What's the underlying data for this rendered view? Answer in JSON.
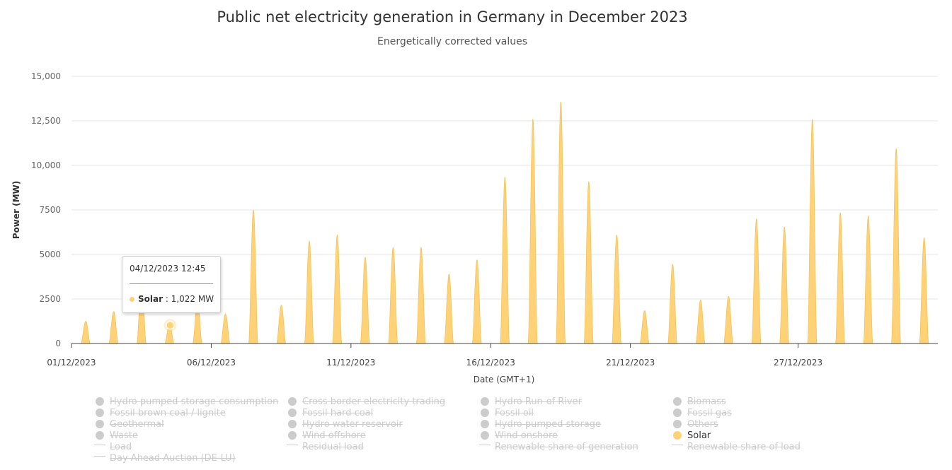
{
  "title": "Public net electricity generation in Germany in December 2023",
  "subtitle": "Energetically corrected values",
  "colors": {
    "solar": "#ffd278",
    "solar_stroke": "#f2c35c",
    "legend_inactive": "#cccccc",
    "axis": "#444444",
    "grid": "#e6e6e6"
  },
  "chart_data": {
    "type": "area",
    "ylabel": "Power (MW)",
    "xlabel": "Date (GMT+1)",
    "ylim": [
      0,
      15000
    ],
    "yticks": [
      0,
      2500,
      5000,
      7500,
      10000,
      12500,
      15000
    ],
    "ytick_labels": [
      "0",
      "2500",
      "5000",
      "7500",
      "10,000",
      "12,500",
      "15,000"
    ],
    "xticks": [
      "01/12/2023",
      "06/12/2023",
      "11/12/2023",
      "16/12/2023",
      "21/12/2023",
      "27/12/2023"
    ],
    "x_start": "2023-12-01",
    "x_end": "2024-01-01",
    "grid": true,
    "series": [
      {
        "name": "Solar",
        "daily_dates": [
          "2023-12-01",
          "2023-12-02",
          "2023-12-03",
          "2023-12-04",
          "2023-12-05",
          "2023-12-06",
          "2023-12-07",
          "2023-12-08",
          "2023-12-09",
          "2023-12-10",
          "2023-12-11",
          "2023-12-12",
          "2023-12-13",
          "2023-12-14",
          "2023-12-15",
          "2023-12-16",
          "2023-12-17",
          "2023-12-18",
          "2023-12-19",
          "2023-12-20",
          "2023-12-21",
          "2023-12-22",
          "2023-12-23",
          "2023-12-24",
          "2023-12-25",
          "2023-12-26",
          "2023-12-27",
          "2023-12-28",
          "2023-12-29",
          "2023-12-30",
          "2023-12-31"
        ],
        "daily_peak_mw": [
          1250,
          1800,
          3500,
          1100,
          2300,
          1650,
          7500,
          2150,
          5750,
          6100,
          4850,
          5400,
          5400,
          3900,
          4700,
          9350,
          12600,
          13600,
          9100,
          6100,
          1850,
          4450,
          2450,
          2650,
          7000,
          6550,
          12600,
          7350,
          7150,
          10950,
          5950
        ]
      }
    ]
  },
  "tooltip": {
    "date": "04/12/2023 12:45",
    "series": "Solar",
    "value": "1,022 MW",
    "point_day": 4,
    "point_hour": 12.75,
    "point_value": 1022
  },
  "legend": [
    {
      "label": "Hydro pumped storage consumption",
      "symbol": "dot",
      "active": false
    },
    {
      "label": "Cross border electricity trading",
      "symbol": "dot",
      "active": false
    },
    {
      "label": "Hydro Run-of-River",
      "symbol": "dot",
      "active": false
    },
    {
      "label": "Biomass",
      "symbol": "dot",
      "active": false
    },
    {
      "label": "Fossil brown coal / lignite",
      "symbol": "dot",
      "active": false
    },
    {
      "label": "Fossil hard coal",
      "symbol": "dot",
      "active": false
    },
    {
      "label": "Fossil oil",
      "symbol": "dot",
      "active": false
    },
    {
      "label": "Fossil gas",
      "symbol": "dot",
      "active": false
    },
    {
      "label": "Geothermal",
      "symbol": "dot",
      "active": false
    },
    {
      "label": "Hydro water reservoir",
      "symbol": "dot",
      "active": false
    },
    {
      "label": "Hydro pumped storage",
      "symbol": "dot",
      "active": false
    },
    {
      "label": "Others",
      "symbol": "dot",
      "active": false
    },
    {
      "label": "Waste",
      "symbol": "dot",
      "active": false
    },
    {
      "label": "Wind offshore",
      "symbol": "dot",
      "active": false
    },
    {
      "label": "Wind onshore",
      "symbol": "dot",
      "active": false
    },
    {
      "label": "Solar",
      "symbol": "dot",
      "active": true
    },
    {
      "label": "Load",
      "symbol": "line",
      "active": false
    },
    {
      "label": "Residual load",
      "symbol": "line",
      "active": false
    },
    {
      "label": "Renewable share of generation",
      "symbol": "line",
      "active": false
    },
    {
      "label": "Renewable share of load",
      "symbol": "line",
      "active": false
    },
    {
      "label": "Day Ahead Auction (DE-LU)",
      "symbol": "line",
      "active": false
    }
  ]
}
